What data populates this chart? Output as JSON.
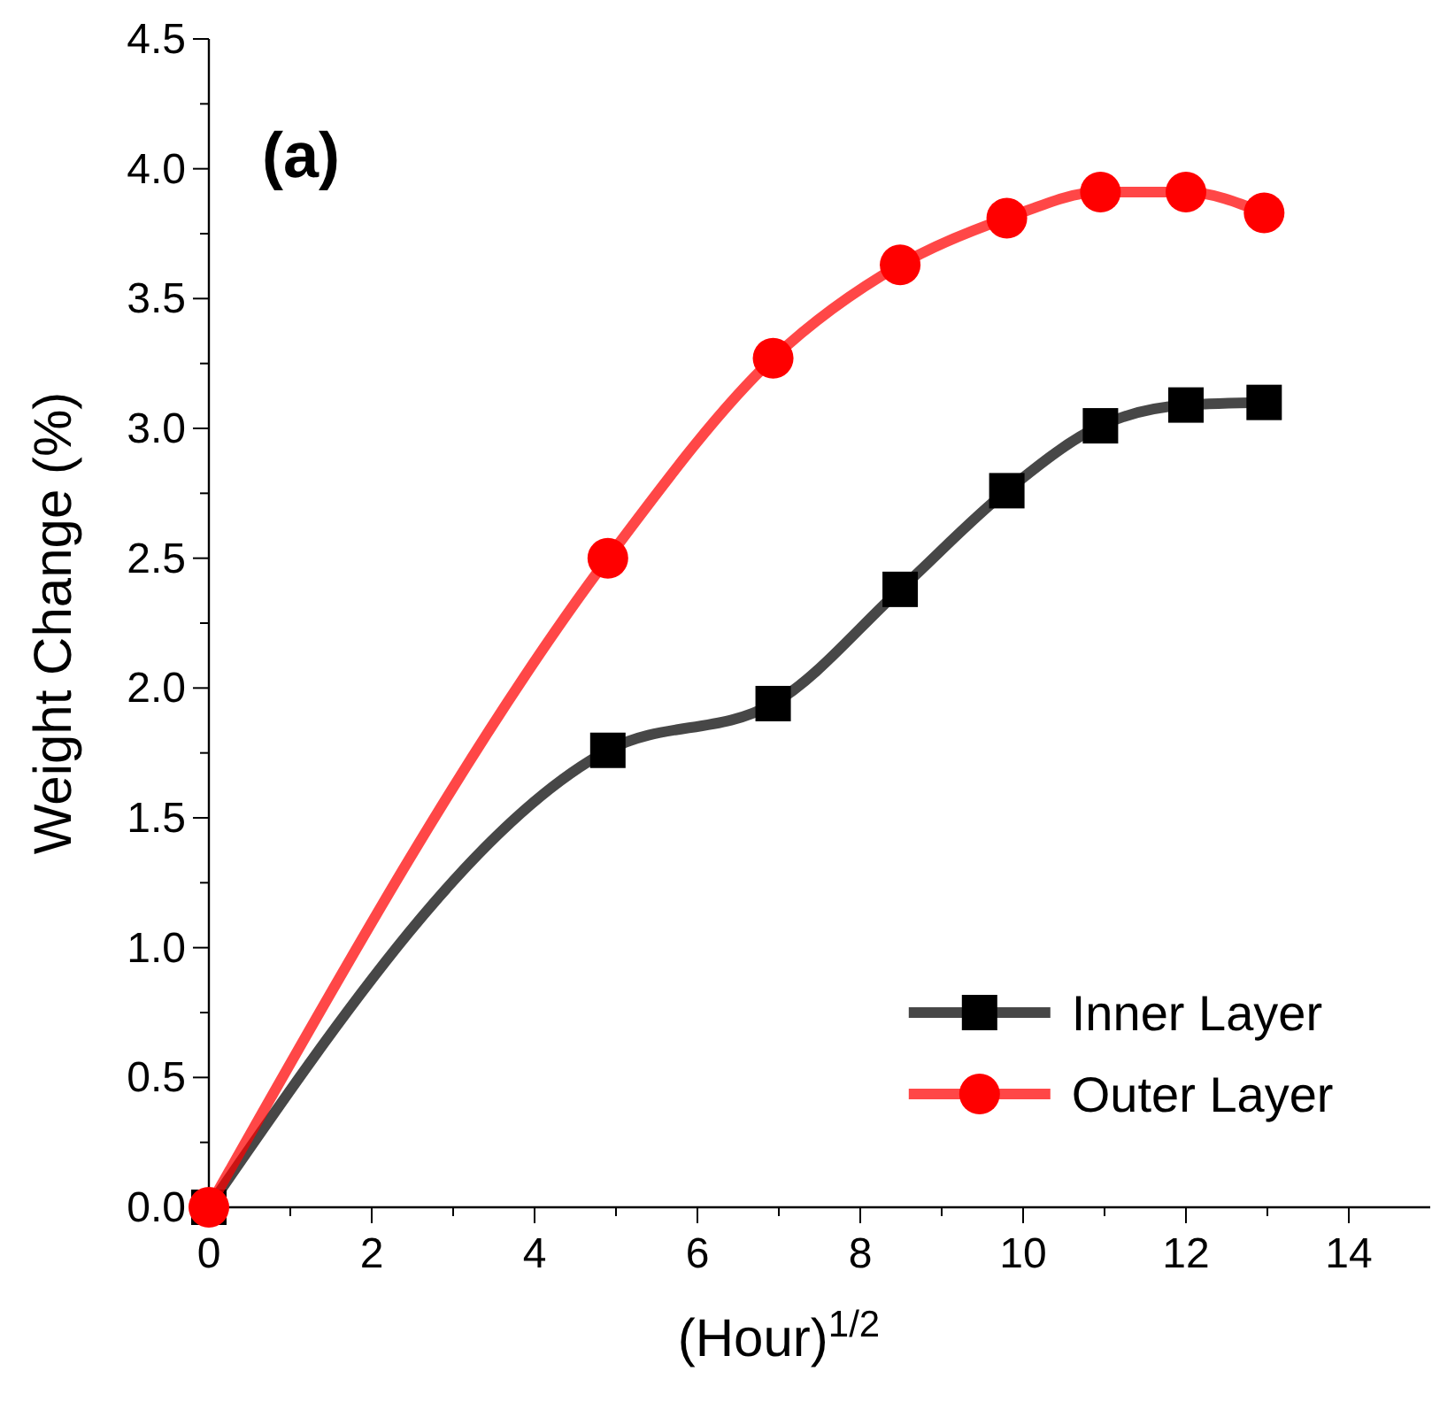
{
  "chart_data": {
    "type": "line",
    "title": "(a)",
    "xlabel": "(Hour)$^{1/2}$",
    "ylabel": "Weight Change (%)",
    "x": [
      0,
      4.9,
      6.93,
      8.49,
      9.8,
      10.95,
      12,
      12.96
    ],
    "series": [
      {
        "name": "Inner Layer",
        "color": "#000000",
        "marker": "square",
        "values": [
          0,
          1.76,
          1.94,
          2.38,
          2.76,
          3.01,
          3.09,
          3.1
        ]
      },
      {
        "name": "Outer Layer",
        "color": "#ff0000",
        "marker": "circle",
        "values": [
          0,
          2.5,
          3.27,
          3.63,
          3.81,
          3.91,
          3.91,
          3.83
        ]
      }
    ],
    "xlim": [
      0,
      15
    ],
    "ylim": [
      0,
      4.5
    ],
    "xticks": [
      0,
      {
        "value": 1,
        "label": null
      },
      2,
      {
        "value": 3,
        "label": null
      },
      4,
      {
        "value": 5,
        "label": null
      },
      6,
      {
        "value": 7,
        "label": null
      },
      8,
      {
        "value": 9,
        "label": null
      },
      10,
      {
        "value": 11,
        "label": null
      },
      12,
      {
        "value": 13,
        "label": null
      },
      14
    ],
    "yticks": [
      {
        "value": 0,
        "label": "0.0"
      },
      {
        "value": 0.25,
        "label": null
      },
      0.5,
      {
        "value": 0.75,
        "label": null
      },
      {
        "value": 1,
        "label": "1.0"
      },
      {
        "value": 1.25,
        "label": null
      },
      1.5,
      {
        "value": 1.75,
        "label": null
      },
      {
        "value": 2,
        "label": "2.0"
      },
      {
        "value": 2.25,
        "label": null
      },
      2.5,
      {
        "value": 2.75,
        "label": null
      },
      {
        "value": 3,
        "label": "3.0"
      },
      {
        "value": 3.25,
        "label": null
      },
      3.5,
      {
        "value": 3.75,
        "label": null
      },
      {
        "value": 4,
        "label": "4.0"
      },
      {
        "value": 4.25,
        "label": null
      },
      4.5
    ],
    "grid": false,
    "legend": "bottom right",
    "line_style": "solid"
  }
}
